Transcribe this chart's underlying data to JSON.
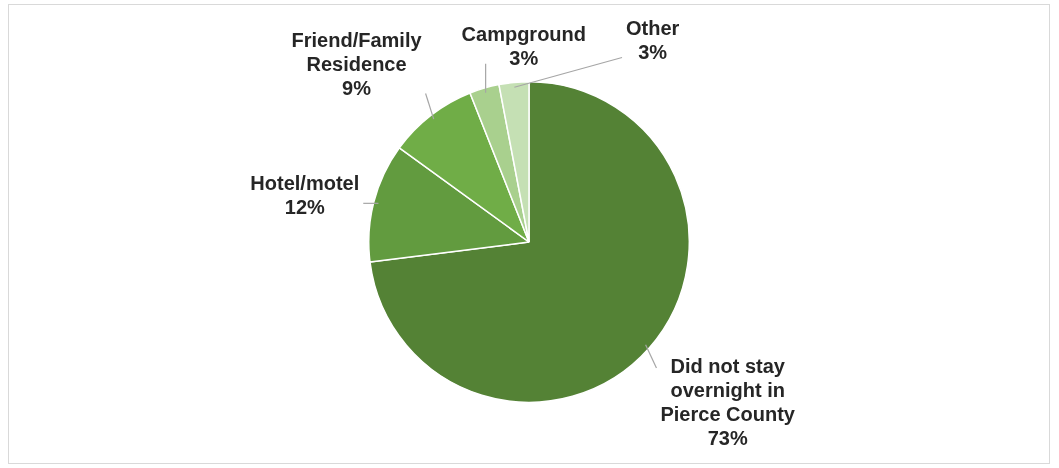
{
  "chart_data": {
    "type": "pie",
    "categories": [
      "Did not stay overnight in Pierce County",
      "Hotel/motel",
      "Friend/Family Residence",
      "Campground",
      "Other"
    ],
    "values": [
      73,
      12,
      9,
      3,
      3
    ],
    "value_labels": [
      "73%",
      "12%",
      "9%",
      "3%",
      "3%"
    ],
    "colors": [
      "#548235",
      "#629b3f",
      "#70ad47",
      "#a9d08e",
      "#c5e0b4"
    ],
    "legend": false
  }
}
